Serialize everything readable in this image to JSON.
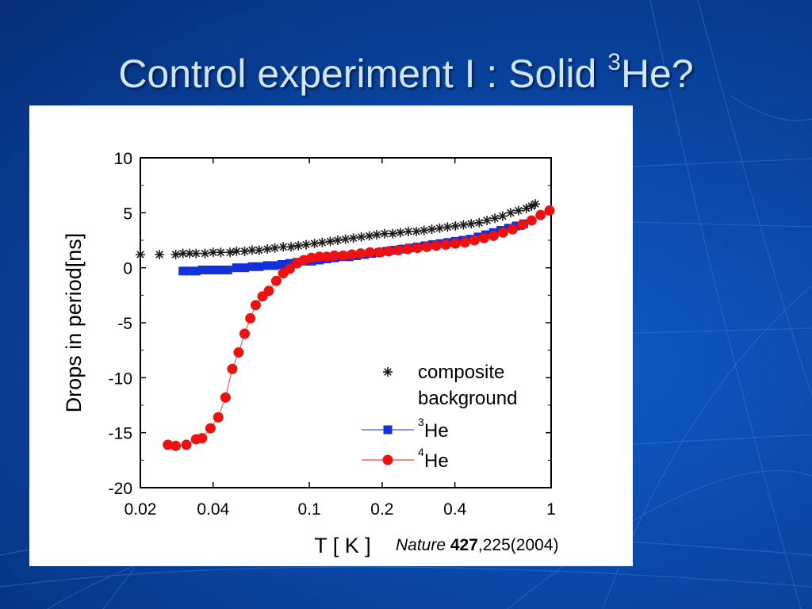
{
  "slide": {
    "title_main": "Control experiment I : Solid ",
    "title_sup": "3",
    "title_end": "He?",
    "citation": {
      "journal": "Nature",
      "volume": "427",
      "rest": ",225(2004)"
    }
  },
  "chart_data": {
    "type": "scatter",
    "xlabel": "T [ K ]",
    "ylabel": "Drops in period[ns]",
    "x_scale": "log",
    "xlim": [
      0.02,
      1
    ],
    "ylim": [
      -20,
      10
    ],
    "x_ticks": [
      {
        "value": 0.02,
        "label": "0.02"
      },
      {
        "value": 0.04,
        "label": "0.04"
      },
      {
        "value": 0.1,
        "label": "0.1"
      },
      {
        "value": 0.2,
        "label": "0.2"
      },
      {
        "value": 0.4,
        "label": "0.4"
      },
      {
        "value": 1,
        "label": "1"
      }
    ],
    "y_ticks": [
      10,
      5,
      0,
      -5,
      -10,
      -15,
      -20
    ],
    "legend": {
      "placement": "lower-right",
      "entries": [
        {
          "series": 0,
          "lines": [
            "composite",
            "background"
          ],
          "sup": "",
          "text": ""
        },
        {
          "series": 1,
          "lines": [],
          "sup": "3",
          "text": "He"
        },
        {
          "series": 2,
          "lines": [],
          "sup": "4",
          "text": "He"
        }
      ]
    },
    "series": [
      {
        "marker": "asterisk",
        "color": "#1a1a1a",
        "line": false,
        "x": [
          0.02,
          0.024,
          0.028,
          0.03,
          0.032,
          0.034,
          0.037,
          0.04,
          0.043,
          0.047,
          0.05,
          0.054,
          0.058,
          0.062,
          0.067,
          0.072,
          0.078,
          0.084,
          0.09,
          0.097,
          0.105,
          0.113,
          0.122,
          0.131,
          0.141,
          0.152,
          0.164,
          0.177,
          0.19,
          0.205,
          0.221,
          0.238,
          0.257,
          0.277,
          0.298,
          0.321,
          0.346,
          0.373,
          0.402,
          0.434,
          0.467,
          0.504,
          0.543,
          0.585,
          0.63,
          0.68,
          0.733,
          0.79,
          0.83,
          0.86
        ],
        "y": [
          1.2,
          1.2,
          1.2,
          1.3,
          1.3,
          1.3,
          1.3,
          1.4,
          1.4,
          1.4,
          1.5,
          1.5,
          1.6,
          1.6,
          1.7,
          1.8,
          1.9,
          1.9,
          2.0,
          2.1,
          2.2,
          2.3,
          2.4,
          2.5,
          2.6,
          2.7,
          2.8,
          2.9,
          3.0,
          3.1,
          3.1,
          3.2,
          3.3,
          3.3,
          3.4,
          3.5,
          3.6,
          3.7,
          3.8,
          3.9,
          4.0,
          4.1,
          4.3,
          4.5,
          4.7,
          5.0,
          5.2,
          5.4,
          5.6,
          5.8
        ]
      },
      {
        "marker": "square",
        "color": "#1430d8",
        "line": true,
        "x": [
          0.03,
          0.032,
          0.034,
          0.036,
          0.038,
          0.04,
          0.042,
          0.044,
          0.046,
          0.05,
          0.054,
          0.058,
          0.062,
          0.067,
          0.072,
          0.077,
          0.083,
          0.089,
          0.095,
          0.102,
          0.11,
          0.118,
          0.127,
          0.136,
          0.146,
          0.157,
          0.169,
          0.181,
          0.195,
          0.209,
          0.225,
          0.242,
          0.26,
          0.28,
          0.301,
          0.323,
          0.348,
          0.374,
          0.402,
          0.432,
          0.464,
          0.499,
          0.537,
          0.577,
          0.62,
          0.667,
          0.717,
          0.77
        ],
        "y": [
          -0.3,
          -0.3,
          -0.3,
          -0.2,
          -0.2,
          -0.2,
          -0.2,
          -0.2,
          -0.2,
          0.0,
          0.0,
          0.1,
          0.1,
          0.2,
          0.2,
          0.3,
          0.4,
          0.5,
          0.6,
          0.6,
          0.7,
          0.8,
          0.9,
          1.0,
          1.0,
          1.1,
          1.2,
          1.3,
          1.4,
          1.5,
          1.6,
          1.7,
          1.8,
          1.9,
          2.0,
          2.1,
          2.2,
          2.3,
          2.4,
          2.5,
          2.6,
          2.8,
          3.0,
          3.2,
          3.4,
          3.6,
          3.8,
          4.0
        ]
      },
      {
        "marker": "circle",
        "color": "#ee1111",
        "line": true,
        "x": [
          0.026,
          0.028,
          0.031,
          0.034,
          0.036,
          0.039,
          0.042,
          0.045,
          0.048,
          0.051,
          0.054,
          0.057,
          0.06,
          0.064,
          0.068,
          0.073,
          0.078,
          0.083,
          0.089,
          0.095,
          0.102,
          0.11,
          0.118,
          0.127,
          0.138,
          0.15,
          0.163,
          0.178,
          0.195,
          0.213,
          0.233,
          0.255,
          0.28,
          0.306,
          0.335,
          0.367,
          0.402,
          0.44,
          0.482,
          0.528,
          0.578,
          0.633,
          0.693,
          0.76,
          0.83,
          0.905,
          0.985
        ],
        "y": [
          -16.1,
          -16.2,
          -16.1,
          -15.6,
          -15.5,
          -14.6,
          -13.6,
          -11.8,
          -9.2,
          -7.7,
          -6.0,
          -4.6,
          -3.4,
          -2.6,
          -2.1,
          -1.2,
          -0.5,
          -0.1,
          0.4,
          0.7,
          0.9,
          1.0,
          1.0,
          1.1,
          1.1,
          1.2,
          1.3,
          1.4,
          1.4,
          1.5,
          1.6,
          1.7,
          1.8,
          1.9,
          2.0,
          2.1,
          2.2,
          2.3,
          2.5,
          2.7,
          2.9,
          3.2,
          3.5,
          3.9,
          4.3,
          4.8,
          5.2
        ]
      }
    ]
  }
}
